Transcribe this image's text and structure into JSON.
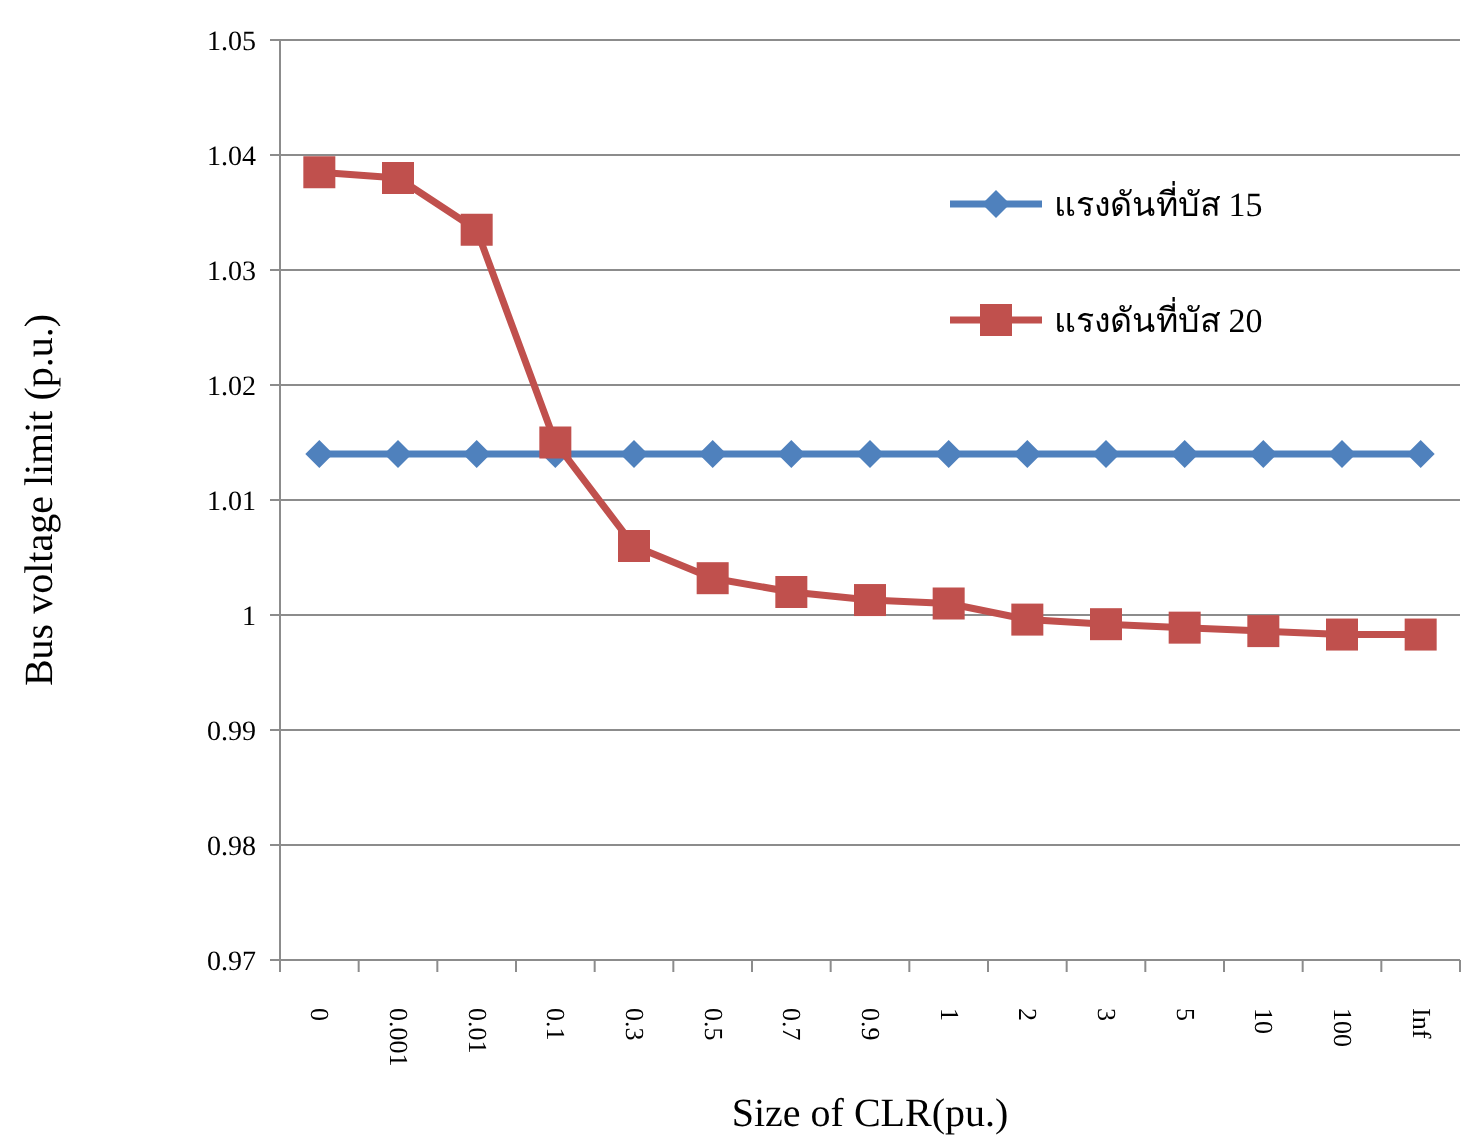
{
  "chart_data": {
    "type": "line",
    "xlabel": "Size of CLR(pu.)",
    "ylabel": "Bus voltage limit  (p.u.)",
    "categories": [
      "0",
      "0.001",
      "0.01",
      "0.1",
      "0.3",
      "0.5",
      "0.7",
      "0.9",
      "1",
      "2",
      "3",
      "5",
      "10",
      "100",
      "Inf"
    ],
    "series": [
      {
        "name": "แรงดันที่บัส 15",
        "color": "#4f81bd",
        "marker": "diamond",
        "values": [
          1.014,
          1.014,
          1.014,
          1.014,
          1.014,
          1.014,
          1.014,
          1.014,
          1.014,
          1.014,
          1.014,
          1.014,
          1.014,
          1.014,
          1.014
        ]
      },
      {
        "name": "แรงดันที่บัส 20",
        "color": "#c0504d",
        "marker": "square",
        "values": [
          1.0385,
          1.038,
          1.0335,
          1.015,
          1.006,
          1.0032,
          1.002,
          1.0013,
          1.001,
          0.9996,
          0.9992,
          0.9989,
          0.9986,
          0.9983,
          0.9983
        ]
      }
    ],
    "ylim": [
      0.97,
      1.05
    ],
    "yticks": [
      0.97,
      0.98,
      0.99,
      1,
      1.01,
      1.02,
      1.03,
      1.04,
      1.05
    ],
    "grid": "y",
    "legend": "top right"
  }
}
